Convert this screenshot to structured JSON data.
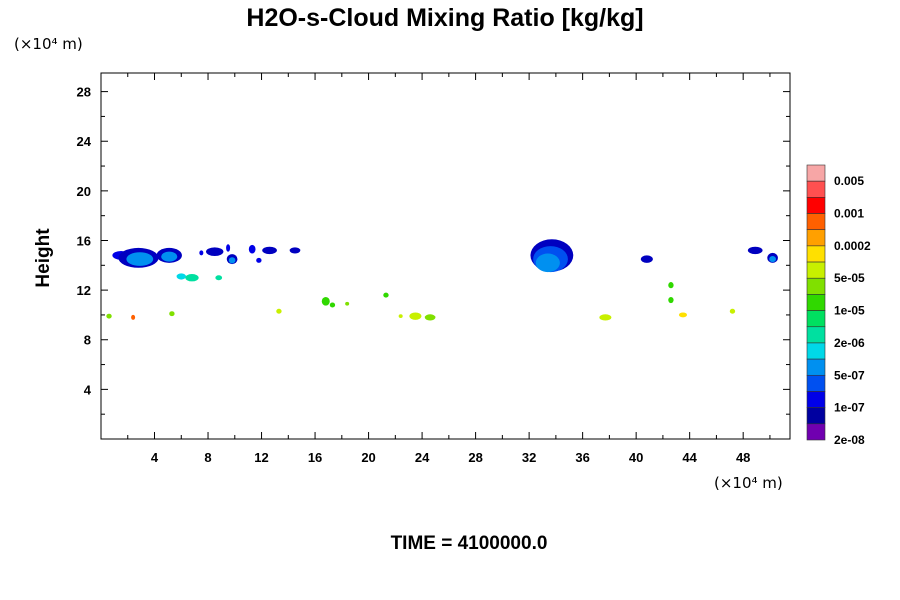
{
  "chart_data": {
    "type": "heatmap",
    "title": "H2O-s-Cloud Mixing Ratio [kg/kg]",
    "y_unit": "(×10⁴ m)",
    "x_unit": "(×10⁴ m)",
    "xlabel": "",
    "ylabel": "Height",
    "footer": "TIME = 4100000.0",
    "xlim": [
      0,
      51.5
    ],
    "ylim": [
      0,
      29.5
    ],
    "x_ticks": [
      "4",
      "8",
      "12",
      "16",
      "20",
      "24",
      "28",
      "32",
      "36",
      "40",
      "44",
      "48"
    ],
    "y_ticks": [
      "4",
      "8",
      "12",
      "16",
      "20",
      "24",
      "28"
    ],
    "grid": false,
    "colorbar": {
      "position": "right",
      "levels": [
        "0.005",
        "0.001",
        "0.0002",
        "5e-05",
        "1e-05",
        "2e-06",
        "5e-07",
        "1e-07",
        "2e-08"
      ],
      "colors": [
        "#f7a6a6",
        "#ff5050",
        "#ff0000",
        "#ff6000",
        "#ffa000",
        "#ffe000",
        "#c8f000",
        "#80e000",
        "#30d800",
        "#00e060",
        "#00e0a0",
        "#00d8e8",
        "#0090f0",
        "#0050f0",
        "#0000e8",
        "#0000a0",
        "#7000b0"
      ]
    },
    "features": [
      {
        "x": 1.5,
        "y": 14.8,
        "w": 1.3,
        "h": 0.7,
        "color": "#0000e8"
      },
      {
        "x": 2.8,
        "y": 14.6,
        "w": 3.0,
        "h": 1.6,
        "color": "#0000c0"
      },
      {
        "x": 2.9,
        "y": 14.5,
        "w": 2.0,
        "h": 1.1,
        "color": "#0090f0"
      },
      {
        "x": 5.1,
        "y": 14.8,
        "w": 1.9,
        "h": 1.2,
        "color": "#0000c0"
      },
      {
        "x": 5.1,
        "y": 14.7,
        "w": 1.2,
        "h": 0.8,
        "color": "#0090f0"
      },
      {
        "x": 6.0,
        "y": 13.1,
        "w": 0.7,
        "h": 0.5,
        "color": "#00d8e8"
      },
      {
        "x": 6.8,
        "y": 13.0,
        "w": 1.0,
        "h": 0.6,
        "color": "#00e0a0"
      },
      {
        "x": 7.5,
        "y": 15.0,
        "w": 0.3,
        "h": 0.4,
        "color": "#0000e8"
      },
      {
        "x": 8.5,
        "y": 15.1,
        "w": 1.3,
        "h": 0.7,
        "color": "#0000c0"
      },
      {
        "x": 8.8,
        "y": 13.0,
        "w": 0.5,
        "h": 0.4,
        "color": "#00e0a0"
      },
      {
        "x": 9.5,
        "y": 15.4,
        "w": 0.3,
        "h": 0.6,
        "color": "#0000e8"
      },
      {
        "x": 9.8,
        "y": 14.5,
        "w": 0.8,
        "h": 0.8,
        "color": "#0000c0"
      },
      {
        "x": 9.8,
        "y": 14.4,
        "w": 0.5,
        "h": 0.5,
        "color": "#0090f0"
      },
      {
        "x": 11.3,
        "y": 15.3,
        "w": 0.5,
        "h": 0.7,
        "color": "#0000e8"
      },
      {
        "x": 11.8,
        "y": 14.4,
        "w": 0.4,
        "h": 0.4,
        "color": "#0000e8"
      },
      {
        "x": 12.6,
        "y": 15.2,
        "w": 1.1,
        "h": 0.6,
        "color": "#0000c0"
      },
      {
        "x": 14.5,
        "y": 15.2,
        "w": 0.8,
        "h": 0.5,
        "color": "#0000c0"
      },
      {
        "x": 33.7,
        "y": 14.8,
        "w": 3.2,
        "h": 2.6,
        "color": "#0000c0"
      },
      {
        "x": 33.6,
        "y": 14.5,
        "w": 2.6,
        "h": 2.1,
        "color": "#0050f0"
      },
      {
        "x": 33.4,
        "y": 14.2,
        "w": 1.8,
        "h": 1.5,
        "color": "#0090f0"
      },
      {
        "x": 40.8,
        "y": 14.5,
        "w": 0.9,
        "h": 0.6,
        "color": "#0000c0"
      },
      {
        "x": 48.9,
        "y": 15.2,
        "w": 1.1,
        "h": 0.6,
        "color": "#0000c0"
      },
      {
        "x": 50.2,
        "y": 14.6,
        "w": 0.8,
        "h": 0.8,
        "color": "#0000c0"
      },
      {
        "x": 50.2,
        "y": 14.5,
        "w": 0.5,
        "h": 0.5,
        "color": "#0090f0"
      },
      {
        "x": 0.6,
        "y": 9.9,
        "w": 0.4,
        "h": 0.4,
        "color": "#80e000"
      },
      {
        "x": 2.4,
        "y": 9.8,
        "w": 0.3,
        "h": 0.4,
        "color": "#ff6000"
      },
      {
        "x": 5.3,
        "y": 10.1,
        "w": 0.4,
        "h": 0.4,
        "color": "#80e000"
      },
      {
        "x": 13.3,
        "y": 10.3,
        "w": 0.4,
        "h": 0.4,
        "color": "#c8f000"
      },
      {
        "x": 16.8,
        "y": 11.1,
        "w": 0.6,
        "h": 0.7,
        "color": "#30d800"
      },
      {
        "x": 17.3,
        "y": 10.8,
        "w": 0.4,
        "h": 0.4,
        "color": "#30d800"
      },
      {
        "x": 18.4,
        "y": 10.9,
        "w": 0.3,
        "h": 0.3,
        "color": "#80e000"
      },
      {
        "x": 21.3,
        "y": 11.6,
        "w": 0.4,
        "h": 0.4,
        "color": "#30d800"
      },
      {
        "x": 22.4,
        "y": 9.9,
        "w": 0.3,
        "h": 0.3,
        "color": "#c8f000"
      },
      {
        "x": 23.5,
        "y": 9.9,
        "w": 0.9,
        "h": 0.6,
        "color": "#c8f000"
      },
      {
        "x": 24.6,
        "y": 9.8,
        "w": 0.8,
        "h": 0.5,
        "color": "#80e000"
      },
      {
        "x": 37.7,
        "y": 9.8,
        "w": 0.9,
        "h": 0.5,
        "color": "#c8f000"
      },
      {
        "x": 42.6,
        "y": 12.4,
        "w": 0.4,
        "h": 0.5,
        "color": "#30d800"
      },
      {
        "x": 42.6,
        "y": 11.2,
        "w": 0.4,
        "h": 0.5,
        "color": "#30d800"
      },
      {
        "x": 43.5,
        "y": 10.0,
        "w": 0.6,
        "h": 0.4,
        "color": "#ffe000"
      },
      {
        "x": 47.2,
        "y": 10.3,
        "w": 0.4,
        "h": 0.4,
        "color": "#c8f000"
      }
    ]
  }
}
